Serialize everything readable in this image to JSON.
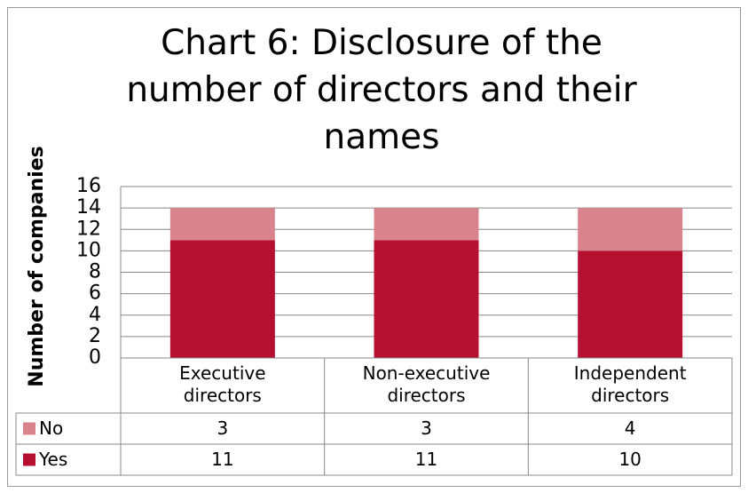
{
  "chart_data": {
    "type": "stacked_bar",
    "title": "Chart 6: Disclosure of the number of directors and their names",
    "y_label": "Number of companies",
    "categories": [
      "Executive directors",
      "Non-executive directors",
      "Independent directors"
    ],
    "series": [
      {
        "name": "Yes",
        "color": "#b5102f",
        "values": [
          11,
          11,
          10
        ]
      },
      {
        "name": "No",
        "color": "#d9848d",
        "values": [
          3,
          3,
          4
        ]
      }
    ],
    "ylim": [
      0,
      16
    ],
    "yticks": [
      0,
      2,
      4,
      6,
      8,
      10,
      12,
      14,
      16
    ],
    "grid": true,
    "data_table": true
  }
}
